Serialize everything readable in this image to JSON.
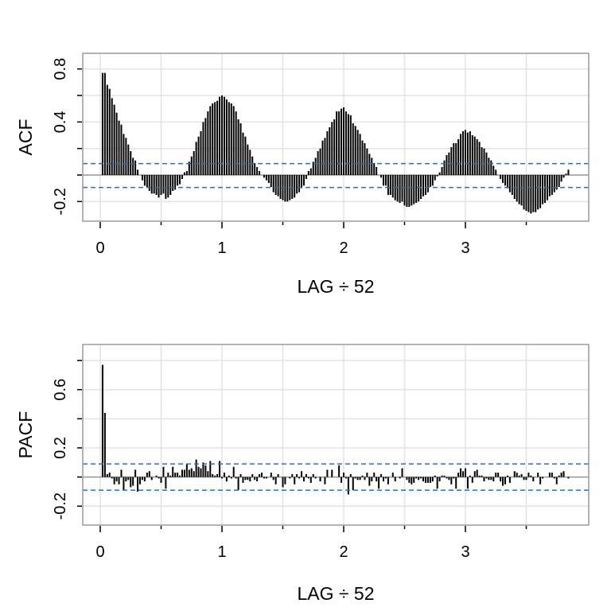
{
  "chart_data": [
    {
      "type": "bar",
      "title": "",
      "xlabel": "LAG ÷ 52",
      "ylabel": "ACF",
      "xlim": [
        -0.15,
        4.0
      ],
      "ylim": [
        -0.348,
        0.918
      ],
      "x_ticks": [
        0,
        1,
        2,
        3
      ],
      "x_minor_ticks": [
        0.5,
        1.5,
        2.5,
        3.5
      ],
      "y_ticks": [
        -0.2,
        0,
        0.2,
        0.4,
        0.6,
        0.8
      ],
      "y_tick_labels": [
        {
          "value": 0.8,
          "label": "0.8"
        },
        {
          "value": 0.4,
          "label": "0.4"
        },
        {
          "value": -0.2,
          "label": "-0.2"
        }
      ],
      "grid": true,
      "lag_step": 0.01923,
      "confidence_bounds": [
        0.086,
        -0.094
      ],
      "values": [
        0.77,
        0.77,
        0.68,
        0.65,
        0.58,
        0.53,
        0.47,
        0.41,
        0.38,
        0.31,
        0.28,
        0.23,
        0.18,
        0.13,
        0.11,
        0.04,
        0.0,
        -0.04,
        -0.08,
        -0.09,
        -0.12,
        -0.14,
        -0.14,
        -0.15,
        -0.17,
        -0.15,
        -0.14,
        -0.18,
        -0.17,
        -0.15,
        -0.12,
        -0.11,
        -0.08,
        -0.07,
        -0.03,
        0.02,
        0.03,
        0.1,
        0.14,
        0.18,
        0.25,
        0.29,
        0.33,
        0.4,
        0.43,
        0.48,
        0.52,
        0.54,
        0.55,
        0.56,
        0.59,
        0.6,
        0.59,
        0.57,
        0.55,
        0.54,
        0.52,
        0.48,
        0.42,
        0.39,
        0.32,
        0.29,
        0.23,
        0.19,
        0.14,
        0.09,
        0.06,
        0.03,
        0.0,
        -0.02,
        -0.04,
        -0.06,
        -0.09,
        -0.13,
        -0.15,
        -0.16,
        -0.18,
        -0.19,
        -0.2,
        -0.2,
        -0.19,
        -0.18,
        -0.17,
        -0.14,
        -0.13,
        -0.1,
        -0.08,
        -0.03,
        0.03,
        0.05,
        0.1,
        0.13,
        0.18,
        0.2,
        0.26,
        0.28,
        0.33,
        0.36,
        0.4,
        0.42,
        0.48,
        0.48,
        0.5,
        0.51,
        0.48,
        0.46,
        0.45,
        0.39,
        0.37,
        0.34,
        0.31,
        0.26,
        0.24,
        0.2,
        0.16,
        0.13,
        0.09,
        0.06,
        0.0,
        -0.02,
        -0.08,
        -0.08,
        -0.15,
        -0.15,
        -0.17,
        -0.19,
        -0.2,
        -0.21,
        -0.2,
        -0.23,
        -0.24,
        -0.24,
        -0.23,
        -0.22,
        -0.21,
        -0.2,
        -0.18,
        -0.16,
        -0.15,
        -0.13,
        -0.09,
        -0.08,
        -0.04,
        -0.01,
        0.02,
        0.06,
        0.11,
        0.15,
        0.17,
        0.21,
        0.24,
        0.24,
        0.27,
        0.31,
        0.33,
        0.34,
        0.32,
        0.33,
        0.3,
        0.29,
        0.27,
        0.25,
        0.21,
        0.2,
        0.17,
        0.13,
        0.11,
        0.07,
        0.04,
        0.0,
        -0.03,
        -0.06,
        -0.08,
        -0.1,
        -0.13,
        -0.15,
        -0.18,
        -0.2,
        -0.22,
        -0.23,
        -0.26,
        -0.27,
        -0.28,
        -0.29,
        -0.28,
        -0.28,
        -0.26,
        -0.25,
        -0.22,
        -0.21,
        -0.19,
        -0.16,
        -0.15,
        -0.13,
        -0.11,
        -0.09,
        -0.05,
        -0.02,
        0.01,
        0.04
      ]
    },
    {
      "type": "bar",
      "title": "",
      "xlabel": "LAG ÷ 52",
      "ylabel": "PACF",
      "xlim": [
        -0.15,
        4.0
      ],
      "ylim": [
        -0.33,
        0.91
      ],
      "x_ticks": [
        0,
        1,
        2,
        3
      ],
      "x_minor_ticks": [
        0.5,
        1.5,
        2.5,
        3.5
      ],
      "y_ticks": [
        -0.2,
        0,
        0.2,
        0.4,
        0.6,
        0.8
      ],
      "y_tick_labels": [
        {
          "value": 0.6,
          "label": "0.6"
        },
        {
          "value": 0.2,
          "label": "0.2"
        },
        {
          "value": -0.2,
          "label": "-0.2"
        }
      ],
      "grid": true,
      "lag_step": 0.01923,
      "confidence_bounds": [
        0.09,
        -0.09
      ],
      "values": [
        0.77,
        0.44,
        0.02,
        0.03,
        -0.01,
        -0.05,
        -0.03,
        -0.05,
        0.05,
        -0.09,
        -0.03,
        -0.02,
        -0.07,
        -0.06,
        0.05,
        -0.1,
        -0.05,
        -0.02,
        -0.03,
        0.03,
        0.04,
        -0.02,
        0.0,
        0.01,
        -0.01,
        -0.04,
        0.07,
        -0.08,
        0.03,
        0.01,
        0.07,
        0.03,
        0.03,
        0.01,
        0.05,
        0.05,
        0.09,
        0.05,
        0.06,
        0.04,
        0.12,
        0.07,
        0.06,
        0.1,
        0.08,
        0.04,
        0.11,
        0.02,
        0.01,
        0.02,
        0.11,
        -0.01,
        0.03,
        -0.03,
        0.01,
        -0.01,
        0.07,
        -0.01,
        -0.09,
        0.02,
        -0.04,
        -0.02,
        -0.02,
        -0.03,
        0.02,
        -0.02,
        -0.03,
        0.02,
        0.03,
        -0.01,
        -0.01,
        0.0,
        0.03,
        -0.02,
        -0.05,
        0.02,
        0.0,
        -0.07,
        -0.05,
        0.0,
        -0.01,
        0.02,
        -0.05,
        0.02,
        -0.01,
        0.04,
        -0.03,
        0.02,
        -0.01,
        -0.04,
        0.02,
        -0.01,
        0.0,
        -0.03,
        0.0,
        -0.05,
        0.05,
        0.0,
        0.05,
        0.0,
        0.0,
        0.08,
        -0.04,
        0.03,
        -0.01,
        -0.12,
        0.02,
        -0.09,
        -0.01,
        -0.02,
        -0.02,
        0.01,
        -0.02,
        0.03,
        -0.06,
        -0.03,
        0.03,
        -0.03,
        -0.08,
        0.02,
        -0.03,
        -0.01,
        -0.05,
        0.0,
        0.03,
        -0.03,
        0.0,
        -0.01,
        0.06,
        0.0,
        -0.02,
        -0.04,
        -0.05,
        -0.04,
        -0.01,
        -0.02,
        -0.01,
        -0.03,
        -0.04,
        -0.04,
        -0.04,
        -0.03,
        0.01,
        -0.08,
        -0.03,
        0.01,
        0.01,
        -0.01,
        -0.02,
        -0.05,
        -0.01,
        -0.08,
        0.03,
        0.06,
        0.04,
        0.06,
        -0.08,
        0.01,
        -0.04,
        0.04,
        0.05,
        0.01,
        0.01,
        -0.03,
        -0.01,
        -0.02,
        -0.02,
        -0.03,
        0.03,
        0.03,
        -0.03,
        -0.06,
        -0.05,
        0.01,
        -0.04,
        0.0,
        0.04,
        0.03,
        0.01,
        0.02,
        -0.02,
        -0.02,
        0.03,
        0.01,
        -0.03,
        0.0,
        0.03,
        -0.05,
        -0.01,
        0.0,
        0.0,
        0.03,
        0.03,
        -0.01,
        -0.05,
        0.01,
        0.03,
        0.04,
        0.0,
        -0.01
      ]
    }
  ],
  "colors": {
    "bar": "#000000",
    "bounds": "#1f6fd0",
    "grid": "#e3e3e3",
    "frame": "#9a9a9a",
    "zero_line": "#9a9a9a"
  }
}
